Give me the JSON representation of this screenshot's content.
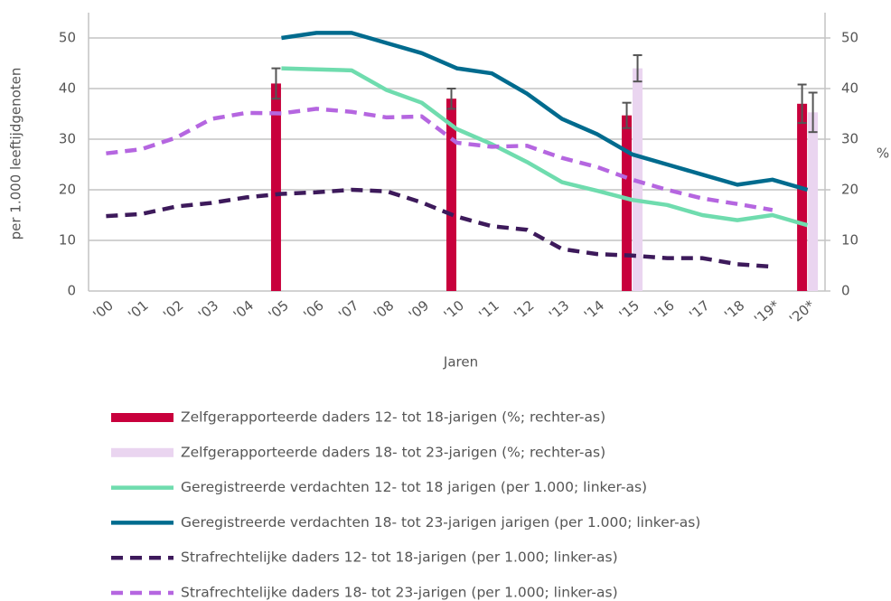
{
  "chart_data": {
    "type": "bar-line",
    "categories": [
      "'00",
      "'01",
      "'02",
      "'03",
      "'04",
      "'05",
      "'06",
      "'07",
      "'08",
      "'09",
      "'10",
      "'11",
      "'12",
      "'13",
      "'14",
      "'15",
      "'16",
      "'17",
      "'18",
      "'19*",
      "'20*"
    ],
    "xlabel": "Jaren",
    "ylabel": "per 1.000 leeftijdgenoten",
    "y2label": "%",
    "ylim": [
      0,
      55
    ],
    "yticks": [
      0,
      10,
      20,
      30,
      40,
      50
    ],
    "y2lim": [
      0,
      55
    ],
    "y2ticks": [
      0,
      10,
      20,
      30,
      40,
      50
    ],
    "grid": true,
    "series": [
      {
        "name": "Zelfgerapporteerde daders 12- tot 18-jarigen (%; rechter-as)",
        "type": "bar",
        "axis": "y2",
        "color": "#c8003c",
        "values": [
          null,
          null,
          null,
          null,
          null,
          41,
          null,
          null,
          null,
          null,
          38,
          null,
          null,
          null,
          null,
          34.7,
          null,
          null,
          null,
          null,
          37
        ],
        "errors": [
          null,
          null,
          null,
          null,
          null,
          3,
          null,
          null,
          null,
          null,
          2,
          null,
          null,
          null,
          null,
          2.5,
          null,
          null,
          null,
          null,
          3.8
        ]
      },
      {
        "name": "Zelfgerapporteerde daders 18- tot 23-jarigen (%; rechter-as)",
        "type": "bar",
        "axis": "y2",
        "color": "#ead5f0",
        "values": [
          null,
          null,
          null,
          null,
          null,
          null,
          null,
          null,
          null,
          null,
          null,
          null,
          null,
          null,
          null,
          44,
          null,
          null,
          null,
          null,
          35.3
        ],
        "errors": [
          null,
          null,
          null,
          null,
          null,
          null,
          null,
          null,
          null,
          null,
          null,
          null,
          null,
          null,
          null,
          2.6,
          null,
          null,
          null,
          null,
          3.9
        ]
      },
      {
        "name": "Geregistreerde verdachten 12- tot 18 jarigen (per 1.000; linker-as)",
        "type": "line",
        "color": "#6fdcae",
        "dashed": false,
        "values": [
          null,
          null,
          null,
          null,
          null,
          44,
          43.8,
          43.6,
          39.7,
          37.2,
          32,
          29,
          25.5,
          21.5,
          19.8,
          18,
          17,
          15,
          14,
          15,
          13
        ]
      },
      {
        "name": "Geregistreerde verdachten 18- tot 23-jarigen jarigen (per 1.000; linker-as)",
        "type": "line",
        "color": "#006b8e",
        "dashed": false,
        "values": [
          null,
          null,
          null,
          null,
          null,
          50,
          51,
          51,
          49,
          47,
          44,
          43,
          39,
          34,
          31,
          27,
          25,
          23,
          21,
          22,
          20
        ]
      },
      {
        "name": "Strafrechtelijke daders 12- tot 18-jarigen (per 1.000; linker-as)",
        "type": "line",
        "color": "#3d1a5b",
        "dashed": true,
        "values": [
          14.8,
          15.2,
          16.7,
          17.4,
          18.5,
          19.2,
          19.5,
          20,
          19.7,
          17.5,
          14.7,
          12.8,
          12.1,
          8.3,
          7.3,
          7,
          6.5,
          6.5,
          5.3,
          4.8,
          null
        ]
      },
      {
        "name": "Strafrechtelijke daders 18- tot 23-jarigen (per 1.000; linker-as)",
        "type": "line",
        "color": "#b566e0",
        "dashed": true,
        "values": [
          27.2,
          28,
          30.3,
          34,
          35.2,
          35.1,
          36,
          35.4,
          34.3,
          34.5,
          29.3,
          28.5,
          28.7,
          26.3,
          24.5,
          22,
          20,
          18.3,
          17.2,
          16,
          null
        ]
      }
    ]
  }
}
